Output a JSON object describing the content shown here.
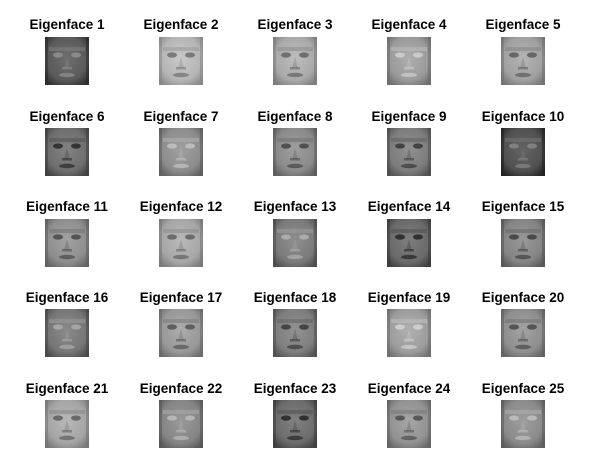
{
  "figure": {
    "tiles": [
      {
        "title": "Eigenface 1",
        "tone": "#5a5a5a"
      },
      {
        "title": "Eigenface 2",
        "tone": "#b5b5b5"
      },
      {
        "title": "Eigenface 3",
        "tone": "#a9a9a9"
      },
      {
        "title": "Eigenface 4",
        "tone": "#9a9a9a"
      },
      {
        "title": "Eigenface 5",
        "tone": "#a0a0a0"
      },
      {
        "title": "Eigenface 6",
        "tone": "#6e6e6e"
      },
      {
        "title": "Eigenface 7",
        "tone": "#8c8c8c"
      },
      {
        "title": "Eigenface 8",
        "tone": "#8a8a8a"
      },
      {
        "title": "Eigenface 9",
        "tone": "#7c7c7c"
      },
      {
        "title": "Eigenface 10",
        "tone": "#505050"
      },
      {
        "title": "Eigenface 11",
        "tone": "#8e8e8e"
      },
      {
        "title": "Eigenface 12",
        "tone": "#a6a6a6"
      },
      {
        "title": "Eigenface 13",
        "tone": "#7a7a7a"
      },
      {
        "title": "Eigenface 14",
        "tone": "#6a6a6a"
      },
      {
        "title": "Eigenface 15",
        "tone": "#848484"
      },
      {
        "title": "Eigenface 16",
        "tone": "#767676"
      },
      {
        "title": "Eigenface 17",
        "tone": "#989898"
      },
      {
        "title": "Eigenface 18",
        "tone": "#7e7e7e"
      },
      {
        "title": "Eigenface 19",
        "tone": "#9c9c9c"
      },
      {
        "title": "Eigenface 20",
        "tone": "#8e8e8e"
      },
      {
        "title": "Eigenface 21",
        "tone": "#a4a4a4"
      },
      {
        "title": "Eigenface 22",
        "tone": "#858585"
      },
      {
        "title": "Eigenface 23",
        "tone": "#6c6c6c"
      },
      {
        "title": "Eigenface 24",
        "tone": "#929292"
      },
      {
        "title": "Eigenface 25",
        "tone": "#8a8a8a"
      }
    ]
  }
}
